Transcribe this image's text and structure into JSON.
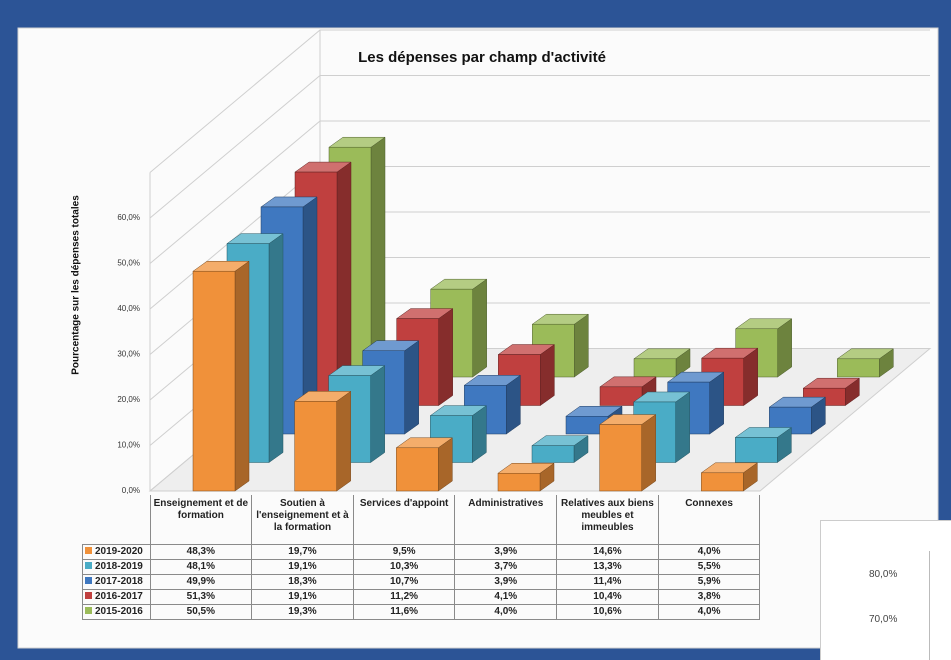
{
  "chart_data": {
    "type": "bar3d",
    "title": "Les dépenses par champ d'activité",
    "y_label": "Pourcentage sur les dépenses totales",
    "categories": [
      "Enseignement et de formation",
      "Soutien à l'enseignement et à la formation",
      "Services d'appoint",
      "Administratives",
      "Relatives aux biens meubles et immeubles",
      "Connexes"
    ],
    "series": [
      {
        "name": "2019-2020",
        "color": "#f0913a",
        "values": [
          48.3,
          19.7,
          9.5,
          3.9,
          14.6,
          4.0
        ],
        "value_labels": [
          "48,3%",
          "19,7%",
          "9,5%",
          "3,9%",
          "14,6%",
          "4,0%"
        ]
      },
      {
        "name": "2018-2019",
        "color": "#4aacc6",
        "values": [
          48.1,
          19.1,
          10.3,
          3.7,
          13.3,
          5.5
        ],
        "value_labels": [
          "48,1%",
          "19,1%",
          "10,3%",
          "3,7%",
          "13,3%",
          "5,5%"
        ]
      },
      {
        "name": "2017-2018",
        "color": "#3f78c0",
        "values": [
          49.9,
          18.3,
          10.7,
          3.9,
          11.4,
          5.9
        ],
        "value_labels": [
          "49,9%",
          "18,3%",
          "10,7%",
          "3,9%",
          "11,4%",
          "5,9%"
        ]
      },
      {
        "name": "2016-2017",
        "color": "#c0403f",
        "values": [
          51.3,
          19.1,
          11.2,
          4.1,
          10.4,
          3.8
        ],
        "value_labels": [
          "51,3%",
          "19,1%",
          "11,2%",
          "4,1%",
          "10,4%",
          "3,8%"
        ]
      },
      {
        "name": "2015-2016",
        "color": "#9bbb59",
        "values": [
          50.5,
          19.3,
          11.6,
          4.0,
          10.6,
          4.0
        ],
        "value_labels": [
          "50,5%",
          "19,3%",
          "11,6%",
          "4,0%",
          "10,6%",
          "4,0%"
        ]
      }
    ],
    "ylim": [
      0,
      70
    ],
    "yticks": [
      {
        "value": 0,
        "label": "0,0%"
      },
      {
        "value": 10,
        "label": "10,0%"
      },
      {
        "value": 20,
        "label": "20,0%"
      },
      {
        "value": 30,
        "label": "30,0%"
      },
      {
        "value": 40,
        "label": "40,0%"
      },
      {
        "value": 50,
        "label": "50,0%"
      },
      {
        "value": 60,
        "label": "60,0%"
      }
    ],
    "grid": true
  },
  "overlay": {
    "yticks": [
      "80,0%",
      "70,0%"
    ]
  }
}
